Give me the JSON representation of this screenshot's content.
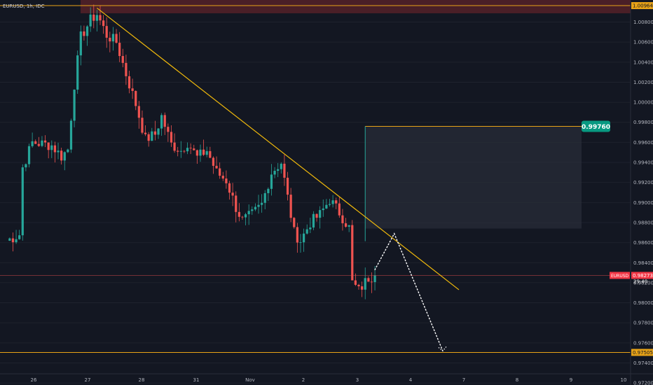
{
  "header": {
    "symbol_line": "EURUSD, 1h, IDC"
  },
  "price_axis": {
    "currency": "USD",
    "tick_labels": [
      "1.00800",
      "1.00600",
      "1.00400",
      "1.00200",
      "1.00000",
      "0.99800",
      "0.99600",
      "0.99400",
      "0.99200",
      "0.99000",
      "0.98800",
      "0.98600",
      "0.98400",
      "0.98200",
      "0.98000",
      "0.97800",
      "0.97600",
      "0.97400",
      "0.97200"
    ],
    "top_level_label": "1.00964",
    "bottom_level_label": "0.97505",
    "target_label": "0.99760",
    "last_symbol_label": "EURUSD",
    "last_price_label": "0.98273",
    "countdown_label": "29:40"
  },
  "time_axis": {
    "labels": [
      "26",
      "27",
      "28",
      "31",
      "Nov",
      "2",
      "3",
      "4",
      "7",
      "8",
      "9",
      "10"
    ]
  },
  "colors": {
    "background": "#131722",
    "bull": "#26a69a",
    "bear": "#ef5350",
    "trendline": "#f0b90b",
    "level": "#e8a317",
    "target_badge": "#089981",
    "last_price_badge": "#f23645",
    "projection": "#ffffff",
    "top_band": "#4a1f27"
  },
  "chart_data": {
    "type": "candlestick",
    "symbol": "EURUSD",
    "timeframe": "1h",
    "source": "IDC",
    "currency": "USD",
    "ylim": [
      0.9718,
      1.0102
    ],
    "x_ticks": [
      "26",
      "27",
      "28",
      "31",
      "Nov",
      "2",
      "3",
      "4",
      "7",
      "8",
      "9",
      "10"
    ],
    "close_path": [
      {
        "t": 0,
        "close": 0.9862
      },
      {
        "t": 4,
        "close": 0.9868
      },
      {
        "t": 5,
        "close": 0.9935
      },
      {
        "t": 8,
        "close": 0.996
      },
      {
        "t": 14,
        "close": 0.9957
      },
      {
        "t": 17,
        "close": 0.9946
      },
      {
        "t": 19,
        "close": 0.9953
      },
      {
        "t": 21,
        "close": 1.0018
      },
      {
        "t": 23,
        "close": 1.0065
      },
      {
        "t": 26,
        "close": 1.0082
      },
      {
        "t": 28,
        "close": 1.0088
      },
      {
        "t": 31,
        "close": 1.0067
      },
      {
        "t": 34,
        "close": 1.006
      },
      {
        "t": 37,
        "close": 1.0028
      },
      {
        "t": 40,
        "close": 0.9998
      },
      {
        "t": 43,
        "close": 0.9963
      },
      {
        "t": 46,
        "close": 0.9968
      },
      {
        "t": 48,
        "close": 0.9986
      },
      {
        "t": 51,
        "close": 0.9958
      },
      {
        "t": 54,
        "close": 0.9952
      },
      {
        "t": 56,
        "close": 0.996
      },
      {
        "t": 59,
        "close": 0.9945
      },
      {
        "t": 62,
        "close": 0.9952
      },
      {
        "t": 65,
        "close": 0.993
      },
      {
        "t": 68,
        "close": 0.9922
      },
      {
        "t": 71,
        "close": 0.9895
      },
      {
        "t": 73,
        "close": 0.9882
      },
      {
        "t": 76,
        "close": 0.9888
      },
      {
        "t": 79,
        "close": 0.9898
      },
      {
        "t": 82,
        "close": 0.993
      },
      {
        "t": 85,
        "close": 0.994
      },
      {
        "t": 87,
        "close": 0.9905
      },
      {
        "t": 89,
        "close": 0.987
      },
      {
        "t": 91,
        "close": 0.9862
      },
      {
        "t": 94,
        "close": 0.988
      },
      {
        "t": 97,
        "close": 0.9888
      },
      {
        "t": 100,
        "close": 0.9903
      },
      {
        "t": 103,
        "close": 0.989
      },
      {
        "t": 106,
        "close": 0.9875
      },
      {
        "t": 107,
        "close": 0.982
      },
      {
        "t": 109,
        "close": 0.9812
      },
      {
        "t": 112,
        "close": 0.9825
      },
      {
        "t": 114,
        "close": 0.98273
      }
    ],
    "annotations": {
      "resistance_level": 1.00964,
      "support_level": 0.97505,
      "last_price": 0.98273,
      "target_box": {
        "top": 0.9976,
        "bottom": 0.9874
      },
      "trendline": {
        "start": {
          "t": 28,
          "price": 1.0094
        },
        "end": {
          "t": 140,
          "price": 0.9813
        }
      },
      "projection_path": [
        {
          "t": 114,
          "price": 0.9833
        },
        {
          "t": 120,
          "price": 0.9869
        },
        {
          "t": 135,
          "price": 0.9752
        }
      ]
    }
  }
}
